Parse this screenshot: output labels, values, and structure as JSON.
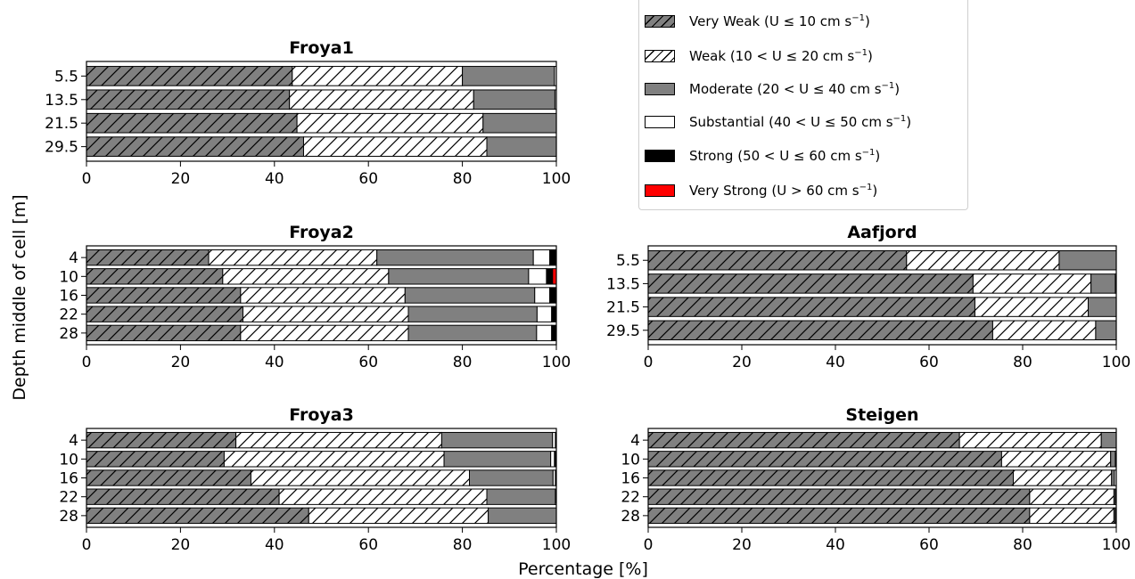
{
  "figure": {
    "ylabel": "Depth middle of cell [m]",
    "xlabel": "Percentage [%]"
  },
  "legend": {
    "items": [
      {
        "key": "very_weak",
        "label": "Very Weak (U ≤  10 cm s",
        "sup": "−1",
        "tail": ")",
        "fill": "#808080",
        "hatch": true
      },
      {
        "key": "weak",
        "label": "Weak (10 < U  ≤  20 cm s",
        "sup": "−1",
        "tail": ")",
        "fill": "#ffffff",
        "hatch": true
      },
      {
        "key": "moderate",
        "label": "Moderate (20 < U  ≤  40 cm s",
        "sup": "−1",
        "tail": ")",
        "fill": "#808080",
        "hatch": false
      },
      {
        "key": "substantial",
        "label": "Substantial (40 < U  ≤  50 cm s",
        "sup": "−1",
        "tail": ")",
        "fill": "#ffffff",
        "hatch": false
      },
      {
        "key": "strong",
        "label": "Strong (50 < U  ≤  60 cm s",
        "sup": "−1",
        "tail": ")",
        "fill": "#000000",
        "hatch": false
      },
      {
        "key": "very_strong",
        "label": "Very Strong (U > 60 cm s",
        "sup": "−1",
        "tail": ")",
        "fill": "#ff0000",
        "hatch": false
      }
    ]
  },
  "chart_data": [
    {
      "type": "bar",
      "orientation": "horizontal",
      "stacked": true,
      "title": "Froya1",
      "categories": [
        "5.5",
        "13.5",
        "21.5",
        "29.5"
      ],
      "xlim": [
        0,
        100
      ],
      "xticks": [
        "0",
        "20",
        "40",
        "60",
        "80",
        "100"
      ],
      "series": [
        {
          "name": "Very Weak",
          "values": [
            43.8,
            43.2,
            44.8,
            46.2
          ]
        },
        {
          "name": "Weak",
          "values": [
            36.2,
            39.2,
            39.6,
            39.0
          ]
        },
        {
          "name": "Moderate",
          "values": [
            19.6,
            17.3,
            15.6,
            14.8
          ]
        },
        {
          "name": "Substantial",
          "values": [
            0.4,
            0.3,
            0.0,
            0.0
          ]
        },
        {
          "name": "Strong",
          "values": [
            0.0,
            0.0,
            0.0,
            0.0
          ]
        },
        {
          "name": "Very Strong",
          "values": [
            0.0,
            0.0,
            0.0,
            0.0
          ]
        }
      ]
    },
    {
      "type": "bar",
      "orientation": "horizontal",
      "stacked": true,
      "title": "Froya2",
      "categories": [
        "4",
        "10",
        "16",
        "22",
        "28"
      ],
      "xlim": [
        0,
        100
      ],
      "xticks": [
        "0",
        "20",
        "40",
        "60",
        "80",
        "100"
      ],
      "series": [
        {
          "name": "Very Weak",
          "values": [
            26.0,
            29.0,
            32.8,
            33.3,
            32.8
          ]
        },
        {
          "name": "Weak",
          "values": [
            35.8,
            35.3,
            35.0,
            35.2,
            35.7
          ]
        },
        {
          "name": "Moderate",
          "values": [
            33.3,
            29.8,
            27.6,
            27.4,
            27.3
          ]
        },
        {
          "name": "Substantial",
          "values": [
            3.5,
            3.8,
            3.2,
            3.1,
            3.2
          ]
        },
        {
          "name": "Strong",
          "values": [
            1.4,
            1.3,
            1.4,
            1.0,
            1.0
          ]
        },
        {
          "name": "Very Strong",
          "values": [
            0.0,
            0.8,
            0.0,
            0.0,
            0.0
          ]
        }
      ]
    },
    {
      "type": "bar",
      "orientation": "horizontal",
      "stacked": true,
      "title": "Aafjord",
      "categories": [
        "5.5",
        "13.5",
        "21.5",
        "29.5"
      ],
      "xlim": [
        0,
        100
      ],
      "xticks": [
        "0",
        "20",
        "40",
        "60",
        "80",
        "100"
      ],
      "series": [
        {
          "name": "Very Weak",
          "values": [
            55.2,
            69.4,
            69.8,
            73.6
          ]
        },
        {
          "name": "Weak",
          "values": [
            32.6,
            25.2,
            24.2,
            22.0
          ]
        },
        {
          "name": "Moderate",
          "values": [
            12.2,
            5.2,
            6.0,
            4.4
          ]
        },
        {
          "name": "Substantial",
          "values": [
            0.0,
            0.2,
            0.0,
            0.0
          ]
        },
        {
          "name": "Strong",
          "values": [
            0.0,
            0.0,
            0.0,
            0.0
          ]
        },
        {
          "name": "Very Strong",
          "values": [
            0.0,
            0.0,
            0.0,
            0.0
          ]
        }
      ]
    },
    {
      "type": "bar",
      "orientation": "horizontal",
      "stacked": true,
      "title": "Froya3",
      "categories": [
        "4",
        "10",
        "16",
        "22",
        "28"
      ],
      "xlim": [
        0,
        100
      ],
      "xticks": [
        "0",
        "20",
        "40",
        "60",
        "80",
        "100"
      ],
      "series": [
        {
          "name": "Very Weak",
          "values": [
            31.8,
            29.3,
            35.0,
            41.0,
            47.3
          ]
        },
        {
          "name": "Weak",
          "values": [
            43.8,
            46.8,
            46.5,
            44.2,
            38.2
          ]
        },
        {
          "name": "Moderate",
          "values": [
            23.6,
            22.7,
            17.8,
            14.6,
            14.5
          ]
        },
        {
          "name": "Substantial",
          "values": [
            0.6,
            0.8,
            0.5,
            0.2,
            0.0
          ]
        },
        {
          "name": "Strong",
          "values": [
            0.2,
            0.4,
            0.2,
            0.0,
            0.0
          ]
        },
        {
          "name": "Very Strong",
          "values": [
            0.0,
            0.0,
            0.0,
            0.0,
            0.0
          ]
        }
      ]
    },
    {
      "type": "bar",
      "orientation": "horizontal",
      "stacked": true,
      "title": "Steigen",
      "categories": [
        "4",
        "10",
        "16",
        "22",
        "28"
      ],
      "xlim": [
        0,
        100
      ],
      "xticks": [
        "0",
        "20",
        "40",
        "60",
        "80",
        "100"
      ],
      "series": [
        {
          "name": "Very Weak",
          "values": [
            66.5,
            75.5,
            78.0,
            81.5,
            81.5
          ]
        },
        {
          "name": "Weak",
          "values": [
            30.3,
            23.3,
            21.0,
            18.0,
            18.0
          ]
        },
        {
          "name": "Moderate",
          "values": [
            3.2,
            1.0,
            0.6,
            0.3,
            0.3
          ]
        },
        {
          "name": "Substantial",
          "values": [
            0.0,
            0.2,
            0.4,
            0.2,
            0.2
          ]
        },
        {
          "name": "Strong",
          "values": [
            0.0,
            0.0,
            0.0,
            0.0,
            0.0
          ]
        },
        {
          "name": "Very Strong",
          "values": [
            0.0,
            0.0,
            0.0,
            0.0,
            0.0
          ]
        }
      ]
    }
  ]
}
